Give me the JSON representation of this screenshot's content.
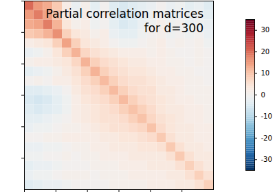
{
  "chart_data": {
    "type": "heatmap",
    "title": "Partial correlation matrices\nfor d=300",
    "xlim": [
      0,
      300
    ],
    "ylim": [
      0,
      300
    ],
    "xticks": [
      0,
      50,
      100,
      150,
      200,
      250
    ],
    "yticks": [
      0,
      50,
      100,
      150,
      200,
      250
    ],
    "tick_labels": false,
    "color": "RdBu_r",
    "cells": [
      [
        20,
        15,
        13,
        9,
        2,
        -2,
        1,
        -3,
        0,
        -4,
        -5,
        -4,
        -3,
        -2,
        0,
        -2,
        -1,
        -3,
        -2,
        -4
      ],
      [
        15,
        18,
        14,
        10,
        3,
        -1,
        2,
        -2,
        1,
        -4,
        -6,
        -5,
        -3,
        -1,
        0,
        -2,
        -1,
        -2,
        -1,
        -3
      ],
      [
        13,
        14,
        18,
        12,
        4,
        1,
        2,
        -1,
        0,
        -3,
        -5,
        -4,
        -2,
        -1,
        1,
        -1,
        0,
        -2,
        -1,
        -2
      ],
      [
        9,
        10,
        12,
        16,
        8,
        4,
        3,
        1,
        2,
        -2,
        -3,
        -3,
        -1,
        0,
        1,
        -1,
        0,
        -1,
        0,
        -2
      ],
      [
        2,
        3,
        4,
        8,
        14,
        8,
        4,
        3,
        2,
        0,
        -1,
        -1,
        0,
        1,
        2,
        0,
        1,
        0,
        1,
        -1
      ],
      [
        -2,
        -1,
        1,
        4,
        8,
        12,
        7,
        5,
        4,
        3,
        2,
        2,
        2,
        1,
        2,
        1,
        0,
        0,
        1,
        0
      ],
      [
        1,
        2,
        2,
        3,
        4,
        7,
        12,
        8,
        6,
        5,
        4,
        3,
        3,
        2,
        2,
        1,
        1,
        0,
        1,
        0
      ],
      [
        -3,
        -2,
        -1,
        1,
        3,
        5,
        8,
        12,
        8,
        6,
        5,
        4,
        4,
        3,
        2,
        2,
        1,
        1,
        0,
        0
      ],
      [
        0,
        1,
        0,
        2,
        2,
        4,
        6,
        8,
        11,
        8,
        6,
        5,
        5,
        4,
        3,
        2,
        2,
        1,
        1,
        0
      ],
      [
        -4,
        -4,
        -3,
        -2,
        0,
        3,
        5,
        6,
        8,
        11,
        8,
        6,
        5,
        5,
        3,
        3,
        2,
        1,
        1,
        1
      ],
      [
        -5,
        -6,
        -5,
        -3,
        -1,
        2,
        4,
        5,
        6,
        8,
        11,
        8,
        6,
        5,
        4,
        3,
        2,
        2,
        1,
        1
      ],
      [
        -4,
        -5,
        -4,
        -3,
        -1,
        2,
        3,
        4,
        5,
        6,
        8,
        10,
        8,
        6,
        4,
        3,
        3,
        2,
        2,
        1
      ],
      [
        -3,
        -3,
        -2,
        -1,
        0,
        2,
        3,
        4,
        5,
        5,
        6,
        8,
        10,
        7,
        5,
        4,
        3,
        2,
        2,
        1
      ],
      [
        -2,
        -1,
        -1,
        0,
        1,
        1,
        2,
        3,
        4,
        5,
        5,
        6,
        7,
        10,
        6,
        4,
        3,
        3,
        2,
        2
      ],
      [
        0,
        0,
        1,
        1,
        2,
        2,
        2,
        2,
        3,
        3,
        4,
        4,
        5,
        6,
        9,
        5,
        3,
        3,
        2,
        2
      ],
      [
        -2,
        -2,
        -1,
        -1,
        0,
        1,
        1,
        2,
        2,
        3,
        3,
        3,
        4,
        4,
        5,
        9,
        5,
        3,
        3,
        2
      ],
      [
        -1,
        -1,
        0,
        0,
        1,
        0,
        1,
        1,
        2,
        2,
        2,
        3,
        3,
        3,
        3,
        5,
        9,
        5,
        3,
        3
      ],
      [
        -3,
        -2,
        -2,
        -1,
        0,
        0,
        0,
        1,
        1,
        1,
        2,
        2,
        2,
        3,
        3,
        3,
        5,
        8,
        5,
        3
      ],
      [
        -2,
        -1,
        -1,
        0,
        1,
        1,
        1,
        0,
        1,
        1,
        1,
        2,
        2,
        2,
        2,
        3,
        3,
        5,
        8,
        5
      ],
      [
        -4,
        -3,
        -2,
        -2,
        -1,
        0,
        0,
        0,
        0,
        1,
        1,
        1,
        1,
        2,
        2,
        2,
        3,
        3,
        5,
        8
      ]
    ],
    "colorbar": {
      "range": [
        -35,
        35
      ],
      "ticks": [
        -30,
        -20,
        -10,
        0,
        10,
        20,
        30
      ]
    }
  }
}
